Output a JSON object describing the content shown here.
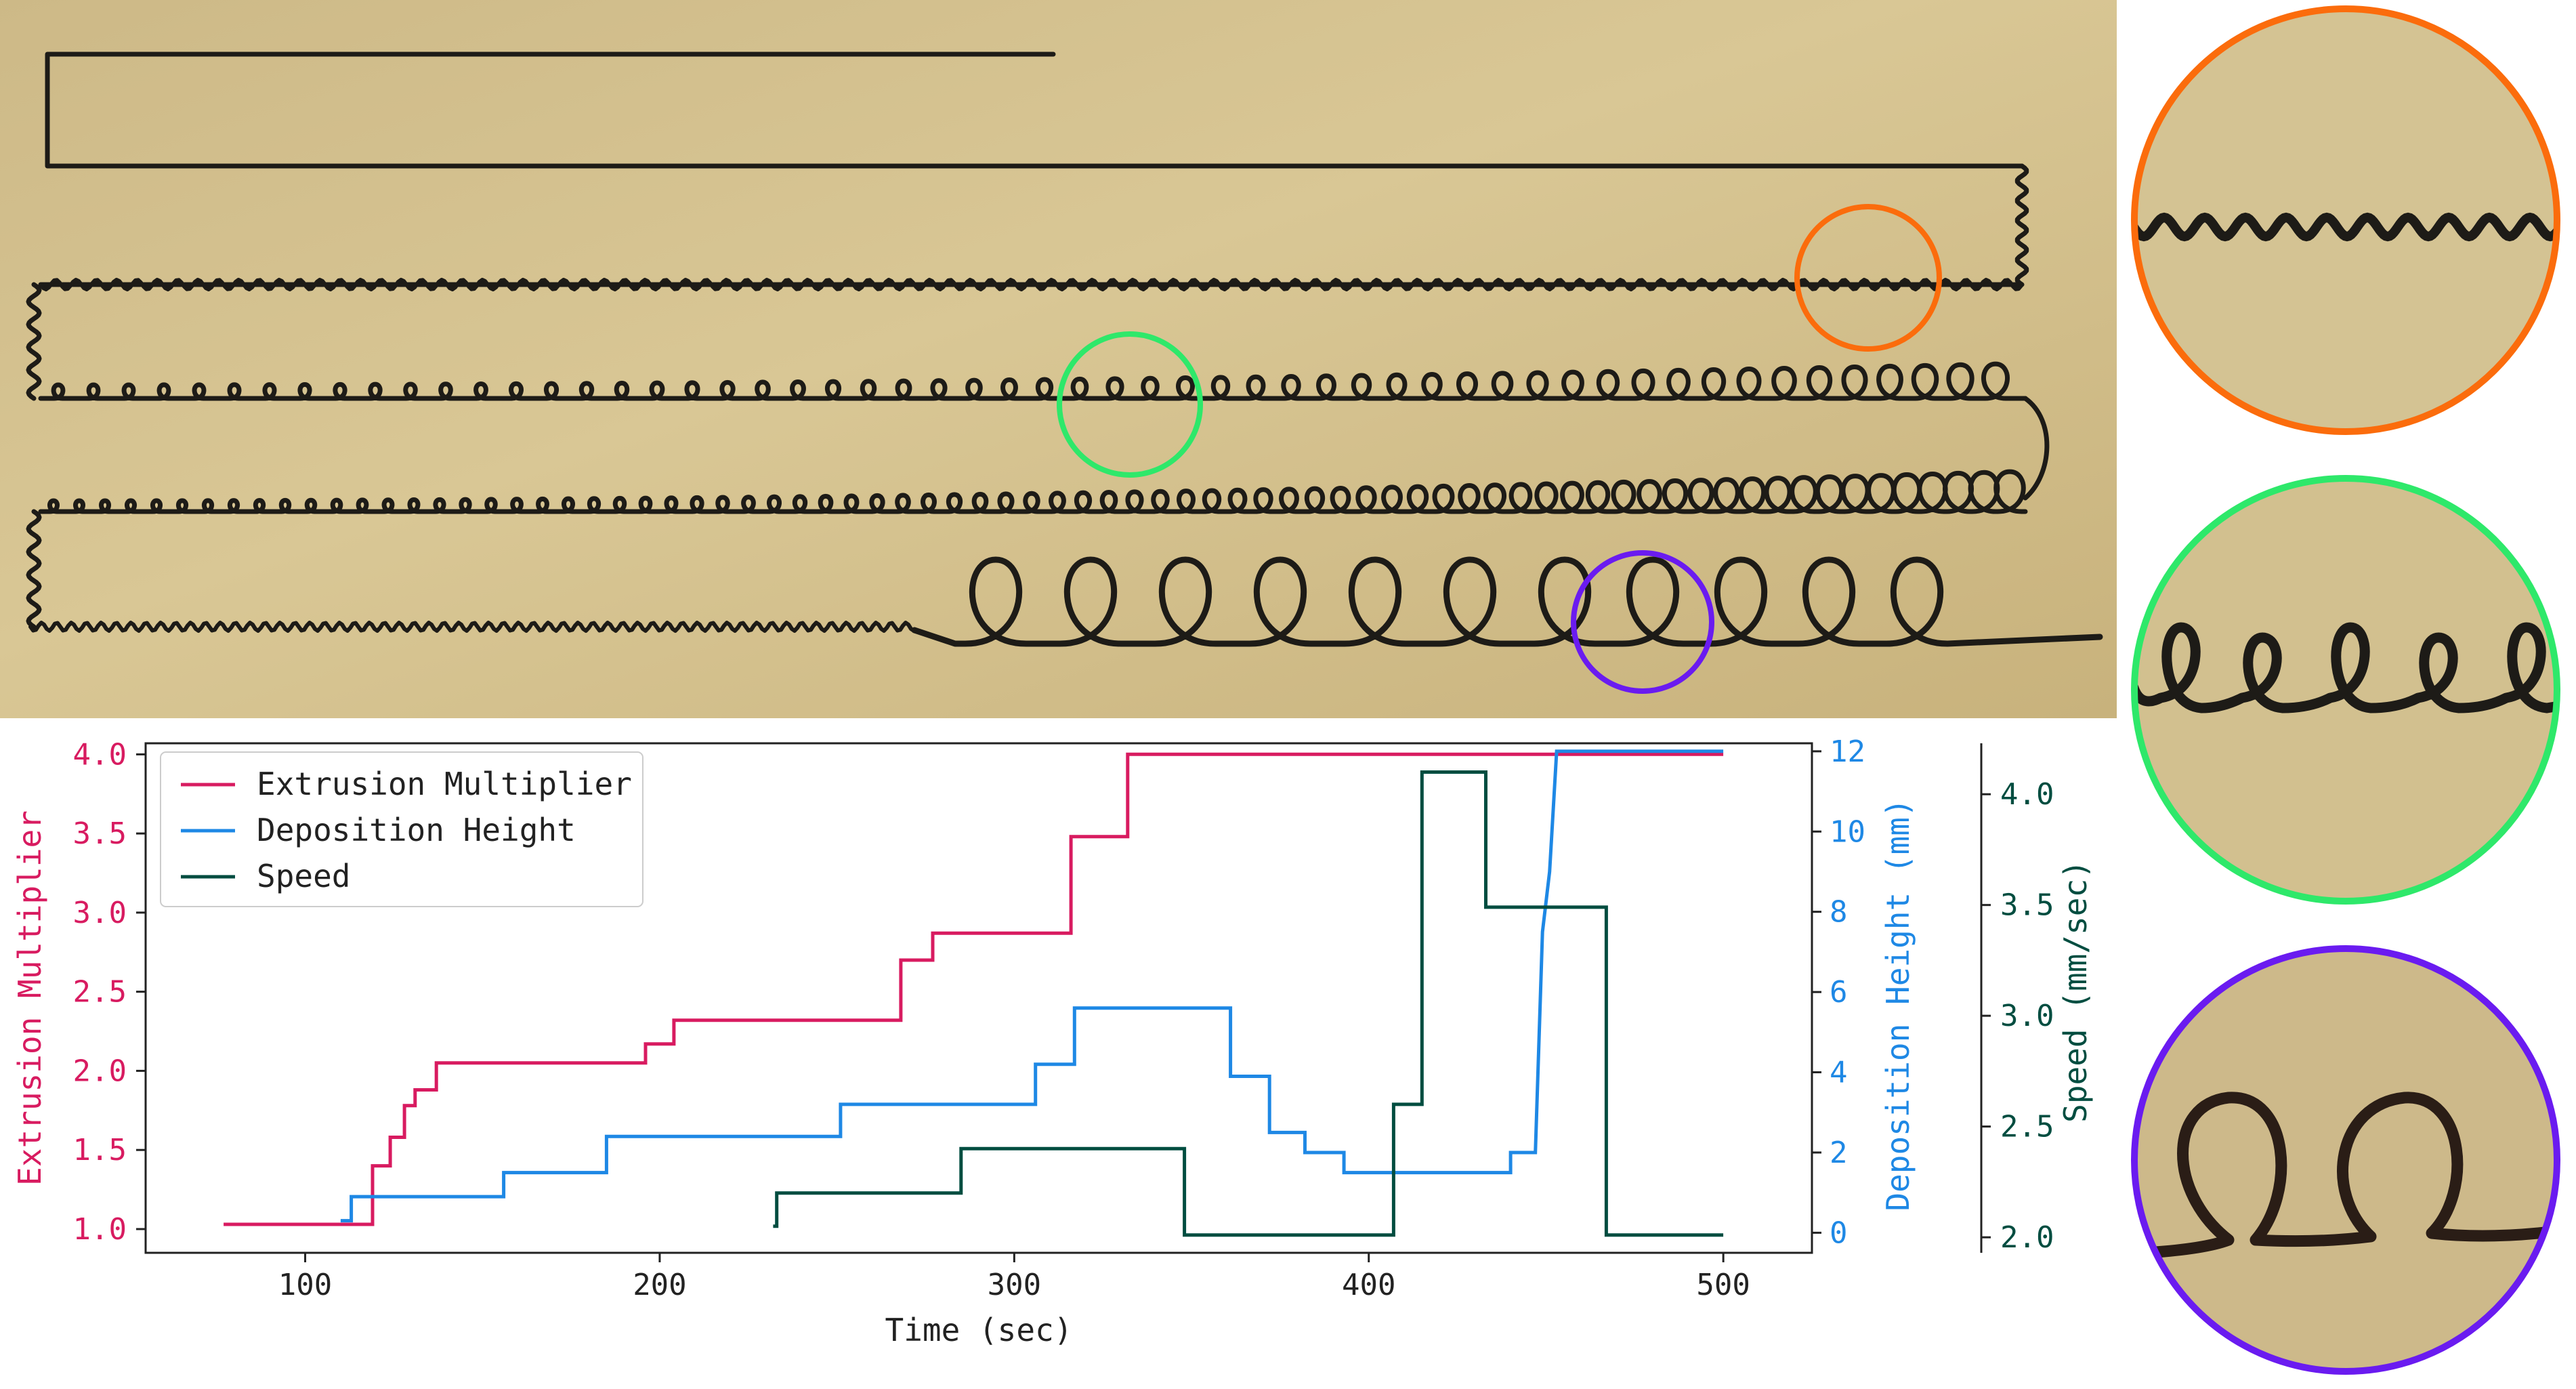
{
  "colors": {
    "extrusion": "#d81b60",
    "deposition": "#1e88e5",
    "speed": "#004d40",
    "circle_orange": "#fb6c0c",
    "circle_green": "#2ee86a",
    "circle_purple": "#6a1bf0",
    "paper": "#d6c38e",
    "filament": "#1d1b17"
  },
  "chart_data": {
    "type": "line",
    "xlabel": "Time (sec)",
    "xlim": [
      55,
      525
    ],
    "xticks": [
      100,
      200,
      300,
      400,
      500
    ],
    "axes": [
      {
        "id": "left",
        "label": "Extrusion Multiplier",
        "ylim": [
          0.85,
          4.07
        ],
        "ticks": [
          "1.0",
          "1.5",
          "2.0",
          "2.5",
          "3.0",
          "3.5",
          "4.0"
        ]
      },
      {
        "id": "right1",
        "label": "Deposition Height (mm)",
        "ylim": [
          -0.5,
          12.2
        ],
        "ticks": [
          "0",
          "2",
          "4",
          "6",
          "8",
          "10",
          "12"
        ]
      },
      {
        "id": "right2",
        "label": "Speed (mm/sec)",
        "ylim": [
          1.93,
          4.23
        ],
        "ticks": [
          "2.0",
          "2.5",
          "3.0",
          "3.5",
          "4.0"
        ]
      }
    ],
    "legend": {
      "position": "top-left",
      "entries": [
        "Extrusion Multiplier",
        "Deposition Height",
        "Speed"
      ]
    },
    "series": [
      {
        "name": "Extrusion Multiplier",
        "axis": "left",
        "color": "#d81b60",
        "x": [
          77,
          119,
          119,
          124,
          124,
          128,
          128,
          131,
          131,
          137,
          137,
          196,
          196,
          204,
          204,
          268,
          268,
          277,
          277,
          316,
          316,
          332,
          332,
          500
        ],
        "y": [
          1.03,
          1.03,
          1.4,
          1.4,
          1.58,
          1.58,
          1.78,
          1.78,
          1.88,
          1.88,
          2.05,
          2.05,
          2.17,
          2.17,
          2.32,
          2.32,
          2.7,
          2.7,
          2.87,
          2.87,
          3.48,
          3.48,
          4.0,
          4.0
        ]
      },
      {
        "name": "Deposition Height",
        "axis": "right1",
        "color": "#1e88e5",
        "x": [
          110,
          111,
          113,
          113,
          156,
          156,
          185,
          185,
          251,
          251,
          306,
          306,
          317,
          317,
          361,
          361,
          372,
          372,
          382,
          382,
          393,
          393,
          440,
          440,
          447,
          449,
          451,
          453,
          500
        ],
        "y": [
          0.3,
          0.3,
          0.3,
          0.9,
          0.9,
          1.5,
          1.5,
          2.4,
          2.4,
          3.2,
          3.2,
          4.2,
          4.2,
          5.6,
          5.6,
          3.9,
          3.9,
          2.5,
          2.5,
          2.0,
          2.0,
          1.5,
          1.5,
          2.0,
          2.0,
          7.5,
          9.0,
          12.0,
          12.0
        ]
      },
      {
        "name": "Speed",
        "axis": "right2",
        "color": "#004d40",
        "x": [
          232,
          232,
          233,
          233,
          285,
          285,
          348,
          348,
          407,
          407,
          415,
          415,
          433,
          433,
          467,
          467,
          500
        ],
        "y": [
          2.05,
          2.05,
          2.05,
          2.2,
          2.2,
          2.4,
          2.4,
          2.01,
          2.01,
          2.6,
          2.6,
          4.1,
          4.1,
          3.49,
          3.49,
          2.01,
          2.01
        ]
      }
    ]
  }
}
